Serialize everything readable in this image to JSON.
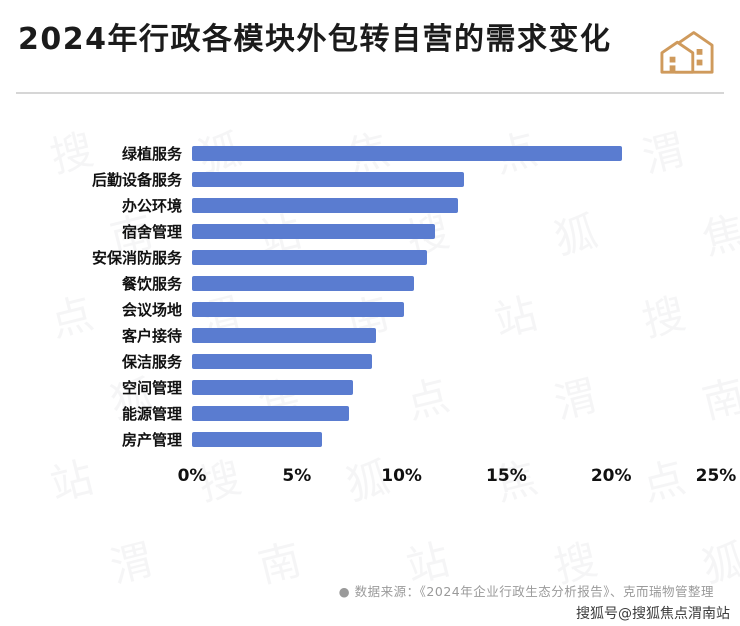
{
  "page": {
    "title": "2024年行政各模块外包转自营的需求变化",
    "source_note": "●  数据来源：《2024年企业行政生态分析报告》、克而瑞物管整理",
    "attribution": "搜狐号@搜狐焦点渭南站",
    "watermark_text": "搜狐焦点渭南站"
  },
  "icons": {
    "header_icon": "house-buildings-icon"
  },
  "colors": {
    "bar": "#5a7cd0",
    "icon": "#cf9a5c",
    "title": "#1b1b1b",
    "source": "#9a9a9a",
    "divider": "#d6d6d6"
  },
  "chart_data": {
    "type": "bar",
    "orientation": "horizontal",
    "title": "2024年行政各模块外包转自营的需求变化",
    "xlabel": "",
    "ylabel": "",
    "xlim": [
      0,
      25
    ],
    "grid": false,
    "legend": false,
    "categories": [
      "绿植服务",
      "后勤设备服务",
      "办公环境",
      "宿舍管理",
      "安保消防服务",
      "餐饮服务",
      "会议场地",
      "客户接待",
      "保洁服务",
      "空间管理",
      "能源管理",
      "房产管理"
    ],
    "values": [
      20.5,
      13.0,
      12.7,
      11.6,
      11.2,
      10.6,
      10.1,
      8.8,
      8.6,
      7.7,
      7.5,
      6.2
    ],
    "unit": "%",
    "x_ticks": [
      "0%",
      "5%",
      "10%",
      "15%",
      "20%",
      "25%"
    ]
  }
}
